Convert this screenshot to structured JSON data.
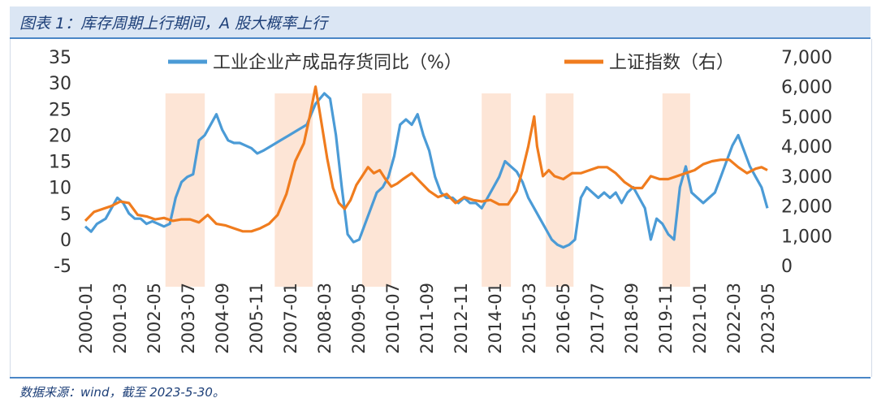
{
  "header": {
    "title": "图表 1：库存周期上行期间，A 股大概率上行"
  },
  "footer": {
    "source": "数据来源：wind，截至 2023-5-30。"
  },
  "colors": {
    "inventory": "#4b9bd6",
    "index": "#f07c1e",
    "band": "#fde5d6",
    "text": "#333333"
  },
  "chart_data": {
    "type": "line",
    "title": "",
    "xlabel": "",
    "ylabel": "",
    "y_left": {
      "range": [
        -5,
        35
      ],
      "ticks": [
        "-5",
        "0",
        "5",
        "10",
        "15",
        "20",
        "25",
        "30",
        "35"
      ]
    },
    "y_right": {
      "range": [
        0,
        7000
      ],
      "ticks": [
        "0",
        "1,000",
        "2,000",
        "3,000",
        "4,000",
        "5,000",
        "6,000",
        "7,000"
      ]
    },
    "x_ticks": [
      "2000-01",
      "2001-03",
      "2002-05",
      "2003-07",
      "2004-09",
      "2005-11",
      "2007-01",
      "2008-03",
      "2009-05",
      "2010-07",
      "2011-09",
      "2012-11",
      "2014-01",
      "2015-03",
      "2016-05",
      "2017-07",
      "2018-09",
      "2019-11",
      "2021-01",
      "2022-03",
      "2023-05"
    ],
    "legend": {
      "placement": "top",
      "entries": [
        "工业企业产成品存货同比（%）",
        "上证指数（右）"
      ]
    },
    "shaded_periods": [
      {
        "start": 2002.75,
        "end": 2004.1
      },
      {
        "start": 2006.5,
        "end": 2007.8
      },
      {
        "start": 2009.5,
        "end": 2010.5
      },
      {
        "start": 2013.6,
        "end": 2014.6
      },
      {
        "start": 2015.8,
        "end": 2016.75
      },
      {
        "start": 2019.8,
        "end": 2020.75
      }
    ],
    "series": [
      {
        "name": "工业企业产成品存货同比（%）",
        "axis": "left",
        "x": [
          2000.0,
          2000.2,
          2000.4,
          2000.7,
          2000.9,
          2001.1,
          2001.3,
          2001.5,
          2001.7,
          2001.9,
          2002.1,
          2002.3,
          2002.5,
          2002.7,
          2002.9,
          2003.1,
          2003.3,
          2003.5,
          2003.7,
          2003.9,
          2004.1,
          2004.3,
          2004.5,
          2004.7,
          2004.9,
          2005.1,
          2005.3,
          2005.5,
          2005.7,
          2005.9,
          2006.1,
          2006.4,
          2006.7,
          2007.0,
          2007.3,
          2007.6,
          2007.9,
          2008.2,
          2008.4,
          2008.6,
          2008.8,
          2009.0,
          2009.2,
          2009.4,
          2009.6,
          2009.8,
          2010.0,
          2010.2,
          2010.4,
          2010.6,
          2010.8,
          2011.0,
          2011.2,
          2011.4,
          2011.6,
          2011.8,
          2012.0,
          2012.2,
          2012.4,
          2012.6,
          2012.8,
          2013.0,
          2013.2,
          2013.4,
          2013.6,
          2013.8,
          2014.0,
          2014.2,
          2014.4,
          2014.6,
          2014.8,
          2015.0,
          2015.2,
          2015.4,
          2015.6,
          2015.8,
          2016.0,
          2016.2,
          2016.4,
          2016.6,
          2016.8,
          2017.0,
          2017.2,
          2017.4,
          2017.6,
          2017.8,
          2018.0,
          2018.2,
          2018.4,
          2018.6,
          2018.8,
          2019.0,
          2019.2,
          2019.4,
          2019.6,
          2019.8,
          2020.0,
          2020.2,
          2020.4,
          2020.6,
          2020.8,
          2021.0,
          2021.2,
          2021.4,
          2021.6,
          2021.8,
          2022.0,
          2022.2,
          2022.4,
          2022.6,
          2022.8,
          2023.0,
          2023.2,
          2023.4
        ],
        "values": [
          2.5,
          1.5,
          3,
          4,
          6,
          8,
          7,
          5,
          4,
          4,
          3,
          3.5,
          3,
          2.5,
          3,
          8,
          11,
          12,
          12.5,
          19,
          20,
          22,
          24,
          21,
          19,
          18.5,
          18.5,
          18,
          17.5,
          16.5,
          17,
          18,
          19,
          20,
          21,
          22,
          26,
          28,
          27,
          20,
          10,
          1,
          -0.5,
          0,
          3,
          6,
          9,
          10,
          12,
          16,
          22,
          23,
          22,
          24,
          20,
          17,
          12,
          9,
          8,
          8,
          7,
          8,
          7,
          7,
          6,
          8,
          10,
          12,
          15,
          14,
          13,
          11,
          8,
          6,
          4,
          2,
          0,
          -1,
          -1.5,
          -1,
          0,
          8,
          10,
          9,
          8,
          9,
          8,
          9,
          7,
          9,
          10,
          8,
          6,
          0,
          4,
          3,
          1,
          0,
          10,
          14,
          9,
          8,
          7,
          8,
          9,
          12,
          15,
          18,
          20,
          17,
          14,
          12,
          10,
          6
        ]
      },
      {
        "name": "上证指数（右）",
        "axis": "right",
        "x": [
          2000.0,
          2000.3,
          2000.6,
          2000.9,
          2001.2,
          2001.5,
          2001.8,
          2002.1,
          2002.4,
          2002.7,
          2003.0,
          2003.3,
          2003.6,
          2003.9,
          2004.2,
          2004.5,
          2004.8,
          2005.1,
          2005.4,
          2005.7,
          2006.0,
          2006.3,
          2006.6,
          2006.9,
          2007.2,
          2007.5,
          2007.7,
          2007.9,
          2008.1,
          2008.3,
          2008.5,
          2008.7,
          2008.9,
          2009.1,
          2009.3,
          2009.5,
          2009.7,
          2009.9,
          2010.1,
          2010.3,
          2010.5,
          2010.7,
          2010.9,
          2011.2,
          2011.5,
          2011.8,
          2012.1,
          2012.4,
          2012.7,
          2013.0,
          2013.3,
          2013.6,
          2013.9,
          2014.2,
          2014.5,
          2014.8,
          2015.0,
          2015.2,
          2015.4,
          2015.5,
          2015.7,
          2015.9,
          2016.1,
          2016.4,
          2016.7,
          2017.0,
          2017.3,
          2017.6,
          2017.9,
          2018.2,
          2018.5,
          2018.8,
          2019.1,
          2019.4,
          2019.7,
          2020.0,
          2020.3,
          2020.6,
          2020.9,
          2021.2,
          2021.5,
          2021.8,
          2022.1,
          2022.4,
          2022.7,
          2023.0,
          2023.2,
          2023.4
        ],
        "values": [
          1500,
          1800,
          1900,
          2000,
          2150,
          2100,
          1700,
          1650,
          1550,
          1600,
          1500,
          1550,
          1550,
          1450,
          1700,
          1400,
          1350,
          1250,
          1150,
          1150,
          1250,
          1400,
          1700,
          2400,
          3500,
          4100,
          5000,
          6000,
          4800,
          3600,
          2600,
          2100,
          1900,
          2200,
          2700,
          3000,
          3300,
          3100,
          3200,
          2900,
          2650,
          2750,
          2900,
          3100,
          2800,
          2500,
          2300,
          2400,
          2100,
          2300,
          2200,
          2150,
          2200,
          2050,
          2050,
          2500,
          3200,
          4000,
          5000,
          4000,
          3000,
          3200,
          3000,
          2900,
          3100,
          3100,
          3200,
          3300,
          3300,
          3100,
          2800,
          2600,
          2600,
          3000,
          2900,
          2900,
          3000,
          3100,
          3200,
          3400,
          3500,
          3550,
          3550,
          3300,
          3100,
          3250,
          3300,
          3200
        ]
      }
    ]
  }
}
